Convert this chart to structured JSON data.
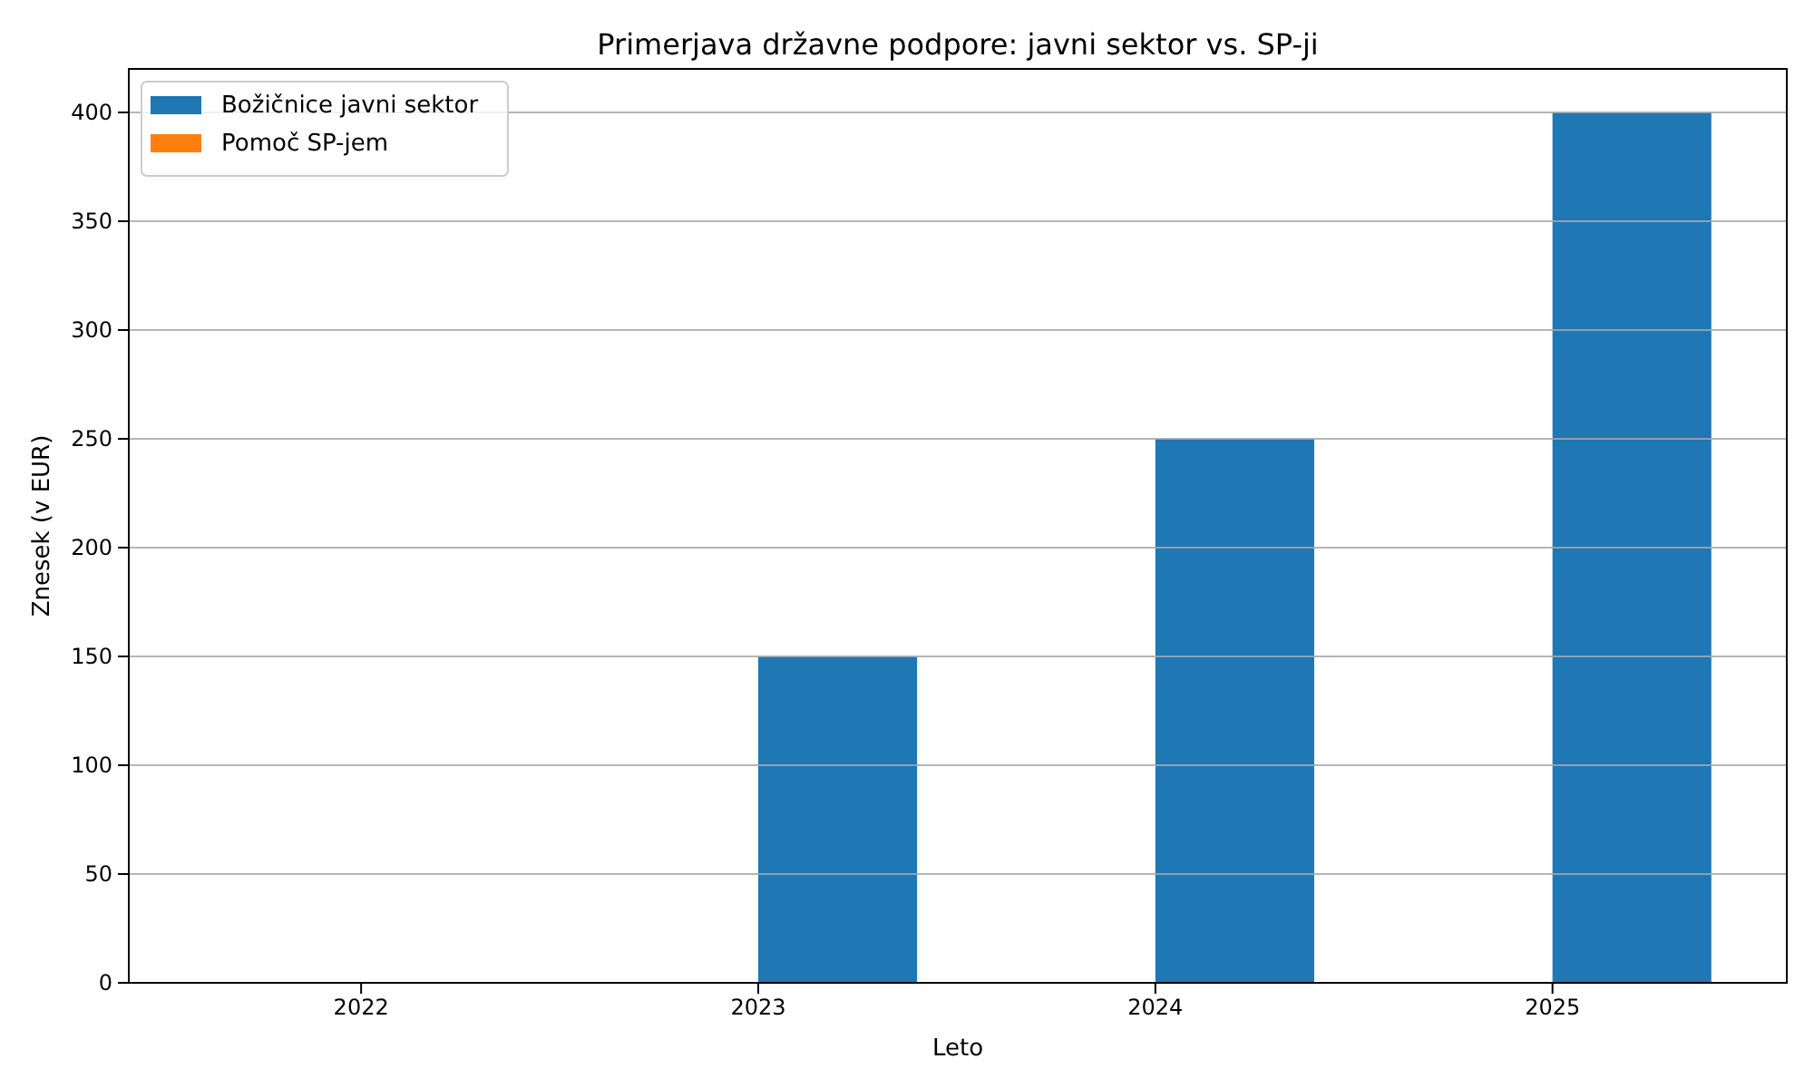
{
  "chart_data": {
    "type": "bar",
    "title": "Primerjava državne podpore: javni sektor vs. SP-ji",
    "xlabel": "Leto",
    "ylabel": "Znesek (v EUR)",
    "categories": [
      "2022",
      "2023",
      "2024",
      "2025"
    ],
    "series": [
      {
        "name": "Božičnice javni sektor",
        "color": "#1f77b4",
        "values": [
          0,
          150,
          250,
          400
        ]
      },
      {
        "name": "Pomoč SP-jem",
        "color": "#ff7f0e",
        "values": [
          0,
          0,
          0,
          0
        ]
      }
    ],
    "ylim": [
      0,
      420
    ],
    "yticks": [
      0,
      50,
      100,
      150,
      200,
      250,
      300,
      350,
      400
    ],
    "grid": "y",
    "legend": "top left"
  }
}
